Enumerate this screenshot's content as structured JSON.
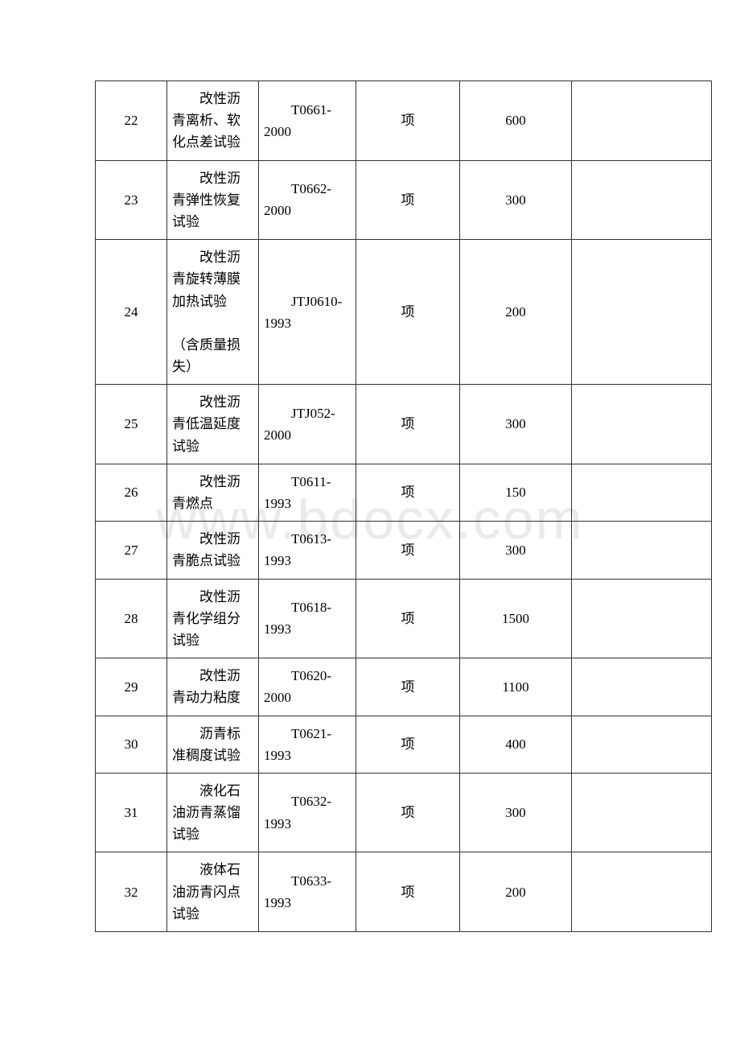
{
  "watermark_text": "www.bdocx.com",
  "table": {
    "border_color": "#323232",
    "background_color": "#ffffff",
    "text_color": "#000000",
    "font_size": 17,
    "columns": [
      {
        "width": 76,
        "align": "center"
      },
      {
        "width": 101,
        "align": "left"
      },
      {
        "width": 108,
        "align": "left"
      },
      {
        "width": 116,
        "align": "center"
      },
      {
        "width": 126,
        "align": "center"
      },
      {
        "width": 161,
        "align": "left"
      }
    ],
    "rows": [
      {
        "id": "22",
        "name": "改性沥青离析、软化点差试验",
        "standard": "T0661-2000",
        "unit": "项",
        "price": "600",
        "note": ""
      },
      {
        "id": "23",
        "name": "改性沥青弹性恢复试验",
        "standard": "T0662-2000",
        "unit": "项",
        "price": "300",
        "note": ""
      },
      {
        "id": "24",
        "name": "改性沥青旋转薄膜加热试验\n\n（含质量损失）",
        "standard": "JTJ0610-1993",
        "unit": "项",
        "price": "200",
        "note": ""
      },
      {
        "id": "25",
        "name": "改性沥青低温延度试验",
        "standard": "JTJ052-2000",
        "unit": "项",
        "price": "300",
        "note": ""
      },
      {
        "id": "26",
        "name": "改性沥青燃点",
        "standard": "T0611-1993",
        "unit": "项",
        "price": "150",
        "note": ""
      },
      {
        "id": "27",
        "name": "改性沥青脆点试验",
        "standard": "T0613-1993",
        "unit": "项",
        "price": "300",
        "note": ""
      },
      {
        "id": "28",
        "name": "改性沥青化学组分试验",
        "standard": "T0618-1993",
        "unit": "项",
        "price": "1500",
        "note": ""
      },
      {
        "id": "29",
        "name": "改性沥青动力粘度",
        "standard": "T0620-2000",
        "unit": "项",
        "price": "1100",
        "note": ""
      },
      {
        "id": "30",
        "name": "沥青标准稠度试验",
        "standard": "T0621-1993",
        "unit": "项",
        "price": "400",
        "note": ""
      },
      {
        "id": "31",
        "name": "液化石油沥青蒸馏试验",
        "standard": "T0632-1993",
        "unit": "项",
        "price": "300",
        "note": ""
      },
      {
        "id": "32",
        "name": "液体石油沥青闪点试验",
        "standard": "T0633-1993",
        "unit": "项",
        "price": "200",
        "note": ""
      }
    ]
  }
}
